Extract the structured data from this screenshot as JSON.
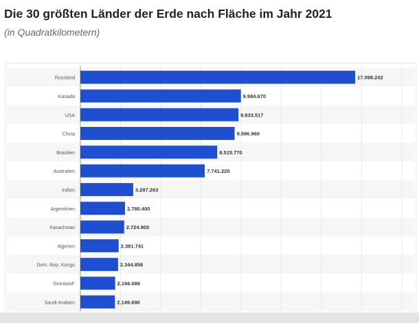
{
  "chart_data": {
    "type": "bar",
    "orientation": "horizontal",
    "title": "Die 30 größten Länder der Erde nach Fläche im Jahr 2021",
    "subtitle": "(in Quadratkilometern)",
    "categories": [
      "Russland",
      "Kanada",
      "USA",
      "China",
      "Brasilien",
      "Australien",
      "Indien",
      "Argentinien",
      "Kasachstan",
      "Algerien",
      "Dem. Rep. Kongo",
      "Grönland*",
      "Saudi-Arabien"
    ],
    "values": [
      17098242,
      9984670,
      9833517,
      9596960,
      8515770,
      7741220,
      3287263,
      2780400,
      2724900,
      2381741,
      2344858,
      2166086,
      2149690
    ],
    "labels": [
      "17.098.242",
      "9.984.670",
      "9.833.517",
      "9.596.960",
      "8.515.770",
      "7.741.220",
      "3.287.263",
      "2.780.400",
      "2.724.900",
      "2.381.741",
      "2.344.858",
      "2.166.086",
      "2.149.690"
    ],
    "xlim": [
      0,
      20000000
    ],
    "grid_step": 2500000,
    "grid": true,
    "bar_color": "#1f4fd1"
  }
}
